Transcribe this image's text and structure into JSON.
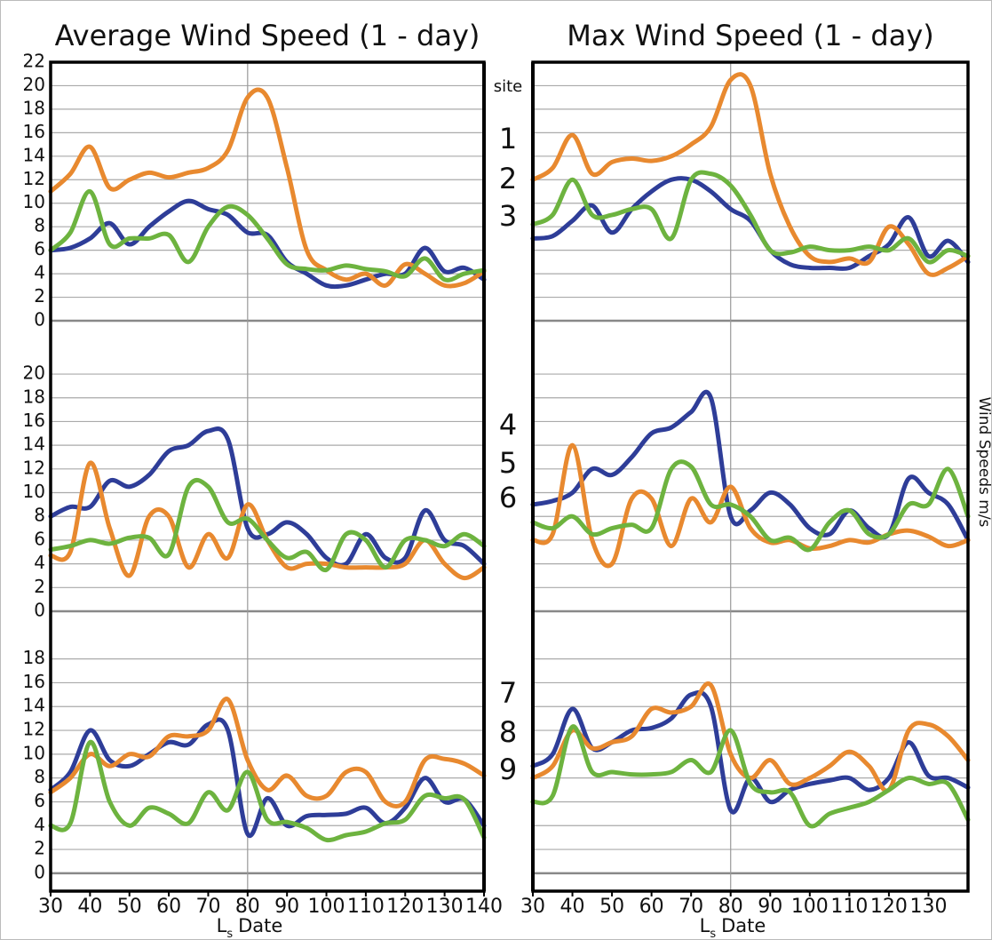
{
  "site_label": "site",
  "y_label": "Wind Speeds m/s",
  "chart_data": [
    {
      "type": "line",
      "title": "Average Wind Speed (1 - day)",
      "x": [
        30,
        35,
        40,
        45,
        50,
        55,
        60,
        65,
        70,
        75,
        80,
        85,
        90,
        95,
        100,
        105,
        110,
        115,
        120,
        125,
        130,
        135,
        140
      ],
      "xlim": [
        30,
        140
      ],
      "ylim": [
        0,
        22
      ],
      "yticks": [
        0,
        2,
        4,
        6,
        8,
        10,
        12,
        14,
        16,
        18,
        20,
        22
      ],
      "ytick_labels": true,
      "grid": true,
      "xgrid": [
        80
      ],
      "series": [
        {
          "name": "1",
          "color": "#2e3d98",
          "values": [
            6,
            6.2,
            7,
            8.3,
            6.5,
            8,
            9.3,
            10.2,
            9.5,
            9,
            7.5,
            7.3,
            5,
            4,
            3,
            3,
            3.5,
            4,
            4,
            6.2,
            4.2,
            4.5,
            3.5
          ]
        },
        {
          "name": "2",
          "color": "#e8892f",
          "values": [
            11,
            12.5,
            14.8,
            11.3,
            12,
            12.6,
            12.2,
            12.6,
            13,
            14.5,
            19,
            19,
            13,
            6,
            4.3,
            3.5,
            4,
            3,
            4.8,
            4,
            3,
            3.2,
            4.2
          ]
        },
        {
          "name": "3",
          "color": "#6db33f",
          "values": [
            6,
            7.5,
            11,
            6.5,
            7,
            7,
            7.3,
            5,
            8,
            9.7,
            9,
            7,
            4.8,
            4.4,
            4.3,
            4.7,
            4.4,
            4.2,
            3.8,
            5.3,
            3.5,
            4,
            4.3
          ]
        }
      ]
    },
    {
      "type": "line",
      "x": [
        30,
        35,
        40,
        45,
        50,
        55,
        60,
        65,
        70,
        75,
        80,
        85,
        90,
        95,
        100,
        105,
        110,
        115,
        120,
        125,
        130,
        135,
        140
      ],
      "xlim": [
        30,
        140
      ],
      "ylim": [
        0,
        24.5
      ],
      "yticks": [
        0,
        2,
        4,
        6,
        8,
        10,
        12,
        14,
        16,
        18,
        20
      ],
      "ytick_labels": true,
      "grid": true,
      "xgrid": [
        80
      ],
      "series": [
        {
          "name": "4",
          "color": "#2e3d98",
          "values": [
            8,
            8.8,
            8.8,
            11,
            10.5,
            11.5,
            13.5,
            14,
            15.2,
            14.5,
            7,
            6.5,
            7.5,
            6.5,
            4.5,
            4,
            6.5,
            4.5,
            4.5,
            8.5,
            6,
            5.5,
            4
          ]
        },
        {
          "name": "5",
          "color": "#e8892f",
          "values": [
            4.7,
            5,
            12.5,
            7,
            3,
            8,
            8,
            3.7,
            6.5,
            4.5,
            9,
            6,
            3.7,
            4,
            4,
            3.7,
            3.7,
            3.7,
            4,
            6,
            4,
            2.8,
            3.7
          ]
        },
        {
          "name": "6",
          "color": "#6db33f",
          "values": [
            5.2,
            5.5,
            6,
            5.7,
            6.2,
            6.2,
            4.8,
            10.5,
            10.5,
            7.5,
            7.8,
            6,
            4.5,
            5,
            3.5,
            6.5,
            6,
            3.7,
            6,
            6,
            5.5,
            6.5,
            5.5
          ]
        }
      ]
    },
    {
      "type": "line",
      "x": [
        30,
        35,
        40,
        45,
        50,
        55,
        60,
        65,
        70,
        75,
        80,
        85,
        90,
        95,
        100,
        105,
        110,
        115,
        120,
        125,
        130,
        135,
        140
      ],
      "xlim": [
        30,
        140
      ],
      "xticks": [
        30,
        40,
        50,
        60,
        70,
        80,
        90,
        100,
        110,
        120,
        130,
        140
      ],
      "x_label_symbol": "L",
      "x_label_subscript": "s",
      "x_label_text": "Date",
      "ylim": [
        -1.5,
        22
      ],
      "yticks": [
        0,
        2,
        4,
        6,
        8,
        10,
        12,
        14,
        16,
        18
      ],
      "ytick_labels": true,
      "grid": true,
      "xgrid": [
        80
      ],
      "series": [
        {
          "name": "7",
          "color": "#2e3d98",
          "values": [
            7,
            8.5,
            12,
            9.5,
            9,
            10,
            11,
            10.8,
            12.5,
            12,
            3.3,
            6.3,
            4,
            4.8,
            4.9,
            5,
            5.5,
            4.2,
            5.5,
            8,
            6,
            6.2,
            4
          ]
        },
        {
          "name": "8",
          "color": "#e8892f",
          "values": [
            6.8,
            8,
            10,
            9,
            10,
            9.8,
            11.5,
            11.5,
            12,
            14.6,
            9.5,
            7,
            8.2,
            6.5,
            6.5,
            8.5,
            8.5,
            6,
            6,
            9.5,
            9.6,
            9.2,
            8.2
          ]
        },
        {
          "name": "9",
          "color": "#6db33f",
          "values": [
            4,
            4.2,
            11,
            6,
            4,
            5.5,
            5,
            4.2,
            6.8,
            5.3,
            8.5,
            4.5,
            4.3,
            3.8,
            2.8,
            3.2,
            3.5,
            4.2,
            4.5,
            6.5,
            6.3,
            6.2,
            3
          ]
        }
      ]
    },
    {
      "type": "line",
      "title": "Max Wind Speed (1 - day)",
      "x": [
        30,
        35,
        40,
        45,
        50,
        55,
        60,
        65,
        70,
        75,
        80,
        85,
        90,
        95,
        100,
        105,
        110,
        115,
        120,
        125,
        130,
        135,
        140
      ],
      "xlim": [
        30,
        140
      ],
      "ylim": [
        0,
        22
      ],
      "yticks": [
        0,
        2,
        4,
        6,
        8,
        10,
        12,
        14,
        16,
        18,
        20,
        22
      ],
      "ytick_labels": false,
      "grid": true,
      "xgrid": [
        80
      ],
      "series": [
        {
          "color": "#2e3d98",
          "values": [
            7,
            7.2,
            8.5,
            9.8,
            7.5,
            9.5,
            11,
            12,
            12,
            11,
            9.5,
            8.5,
            6,
            4.8,
            4.5,
            4.5,
            4.5,
            5.5,
            6.5,
            8.8,
            5.5,
            6.8,
            5
          ]
        },
        {
          "color": "#e8892f",
          "values": [
            12,
            13,
            15.8,
            12.5,
            13.5,
            13.8,
            13.6,
            14,
            15,
            16.5,
            20.5,
            20,
            12.5,
            8,
            5.5,
            5,
            5.3,
            5,
            8,
            6.5,
            4,
            4.5,
            5.5
          ]
        },
        {
          "color": "#6db33f",
          "values": [
            8.2,
            9,
            12,
            9,
            9,
            9.5,
            9.5,
            7,
            12,
            12.5,
            11.5,
            9,
            6,
            5.8,
            6.3,
            6,
            6,
            6.3,
            6,
            7,
            5,
            6,
            5.5
          ]
        }
      ]
    },
    {
      "type": "line",
      "x": [
        30,
        35,
        40,
        45,
        50,
        55,
        60,
        65,
        70,
        75,
        80,
        85,
        90,
        95,
        100,
        105,
        110,
        115,
        120,
        125,
        130,
        135,
        140
      ],
      "xlim": [
        30,
        140
      ],
      "ylim": [
        0,
        24.5
      ],
      "yticks": [
        0,
        2,
        4,
        6,
        8,
        10,
        12,
        14,
        16,
        18,
        20
      ],
      "ytick_labels": false,
      "grid": true,
      "xgrid": [
        80
      ],
      "series": [
        {
          "color": "#2e3d98",
          "values": [
            9,
            9.3,
            10,
            12,
            11.5,
            13,
            15,
            15.5,
            16.8,
            18,
            8,
            8.5,
            10,
            9,
            7,
            6.5,
            8.5,
            7,
            6.5,
            11.2,
            10,
            9,
            6
          ]
        },
        {
          "color": "#e8892f",
          "values": [
            6,
            6.5,
            14,
            6,
            4,
            9.5,
            9.5,
            5.5,
            9.5,
            7.5,
            10.5,
            7,
            5.8,
            6,
            5.3,
            5.5,
            6,
            5.8,
            6.5,
            6.8,
            6.3,
            5.5,
            6
          ]
        },
        {
          "color": "#6db33f",
          "values": [
            7.5,
            7,
            8,
            6.5,
            7,
            7.3,
            7,
            12,
            12.2,
            9,
            9,
            8,
            6,
            6.2,
            5.2,
            7.5,
            8.5,
            6.5,
            6.5,
            9,
            9,
            12,
            8
          ]
        }
      ]
    },
    {
      "type": "line",
      "x": [
        30,
        35,
        40,
        45,
        50,
        55,
        60,
        65,
        70,
        75,
        80,
        85,
        90,
        95,
        100,
        105,
        110,
        115,
        120,
        125,
        130,
        135,
        140
      ],
      "xlim": [
        30,
        140
      ],
      "xticks": [
        30,
        40,
        50,
        60,
        70,
        80,
        90,
        100,
        110,
        120,
        130
      ],
      "x_label_symbol": "L",
      "x_label_subscript": "s",
      "x_label_text": "Date",
      "ylim": [
        -1.5,
        22
      ],
      "yticks": [
        0,
        2,
        4,
        6,
        8,
        10,
        12,
        14,
        16,
        18
      ],
      "ytick_labels": false,
      "grid": true,
      "xgrid": [
        80
      ],
      "series": [
        {
          "color": "#2e3d98",
          "values": [
            9,
            10,
            13.8,
            10.5,
            11,
            12,
            12.2,
            13,
            15,
            14,
            5.3,
            8,
            6,
            7,
            7.5,
            7.8,
            8,
            7,
            8,
            11,
            8.2,
            8,
            7.2
          ]
        },
        {
          "color": "#e8892f",
          "values": [
            8,
            9,
            12,
            10.5,
            11,
            11.5,
            13.8,
            13.5,
            14,
            15.8,
            10,
            8,
            9.5,
            7.5,
            8,
            9,
            10.2,
            9,
            7,
            12,
            12.5,
            11.5,
            9.5
          ]
        },
        {
          "color": "#6db33f",
          "values": [
            6,
            6.5,
            12.3,
            8.5,
            8.5,
            8.3,
            8.3,
            8.5,
            9.5,
            8.5,
            12,
            7.5,
            6.8,
            6.8,
            4,
            5,
            5.5,
            6,
            7,
            8,
            7.5,
            7.5,
            4.5
          ]
        }
      ]
    }
  ]
}
